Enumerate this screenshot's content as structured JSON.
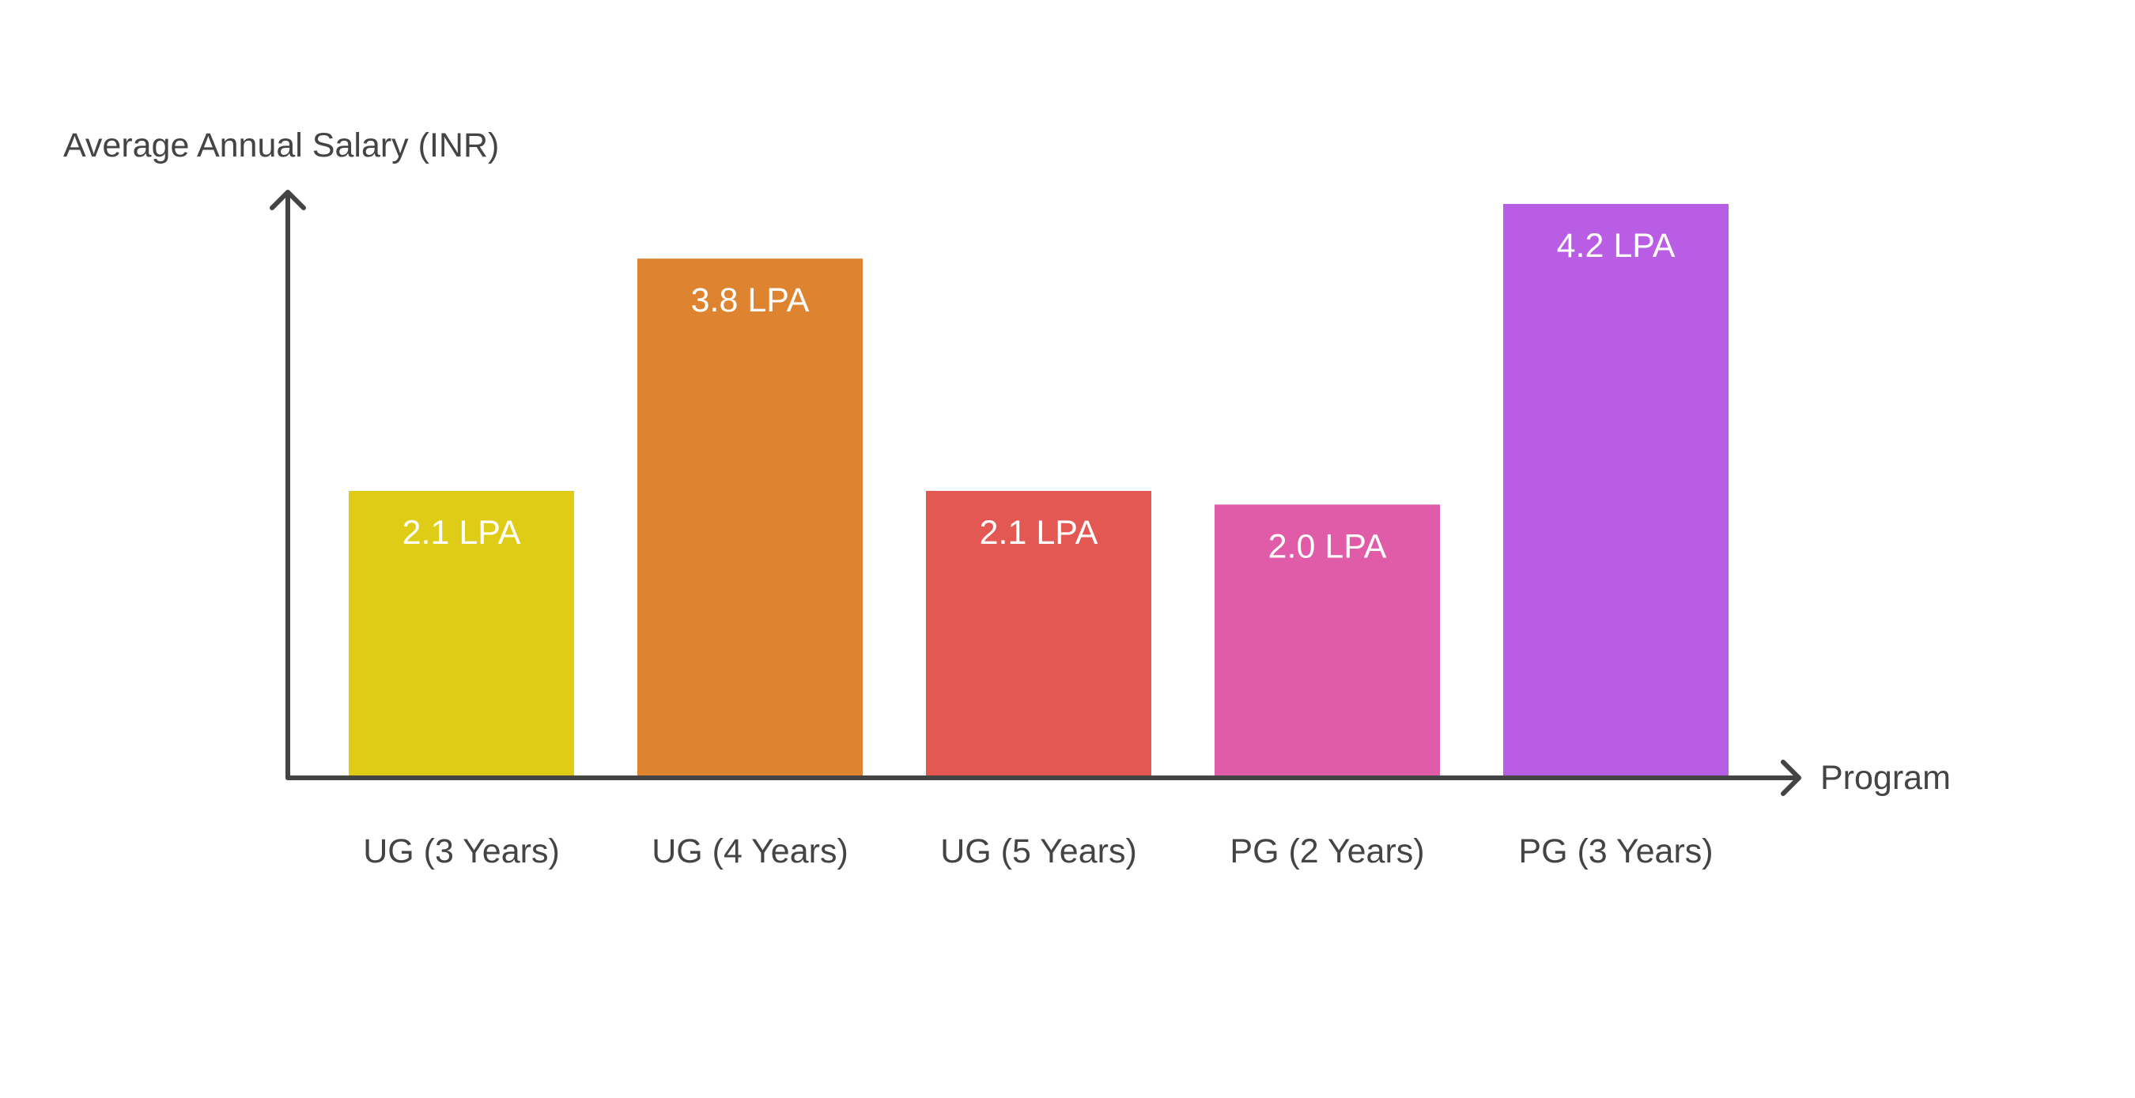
{
  "chart_data": {
    "type": "bar",
    "title": "",
    "xlabel": "Program",
    "ylabel": "Average Annual Salary (INR)",
    "ylim": [
      0,
      4.2
    ],
    "grid": false,
    "categories": [
      "UG (3 Years)",
      "UG (4 Years)",
      "UG (5 Years)",
      "PG (2 Years)",
      "PG (3 Years)"
    ],
    "values": [
      2.1,
      3.8,
      2.1,
      2.0,
      4.2
    ],
    "data_labels": [
      "2.1 LPA",
      "3.8 LPA",
      "2.1 LPA",
      "2.0 LPA",
      "4.2 LPA"
    ],
    "colors": [
      "#DFCC16",
      "#DE8430",
      "#E45854",
      "#E05BA8",
      "#B85DE4"
    ]
  }
}
